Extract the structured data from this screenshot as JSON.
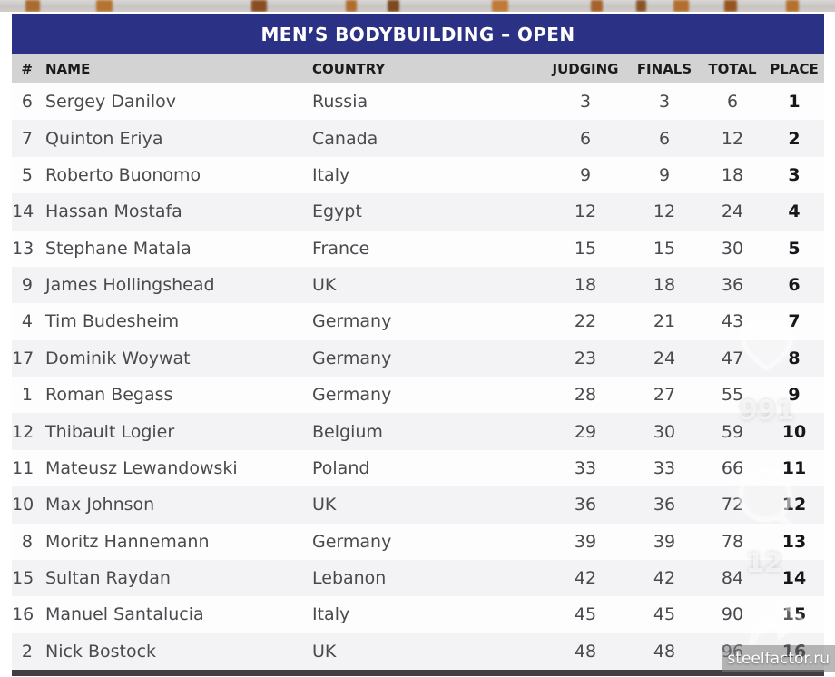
{
  "title": "MEN’S BODYBUILDING – OPEN",
  "table": {
    "columns": [
      "#",
      "NAME",
      "COUNTRY",
      "JUDGING",
      "FINALS",
      "TOTAL",
      "PLACE"
    ],
    "rows": [
      {
        "num": "6",
        "name": "Sergey Danilov",
        "country": "Russia",
        "judging": "3",
        "finals": "3",
        "total": "6",
        "place": "1"
      },
      {
        "num": "7",
        "name": "Quinton Eriya",
        "country": "Canada",
        "judging": "6",
        "finals": "6",
        "total": "12",
        "place": "2"
      },
      {
        "num": "5",
        "name": "Roberto Buonomo",
        "country": "Italy",
        "judging": "9",
        "finals": "9",
        "total": "18",
        "place": "3"
      },
      {
        "num": "14",
        "name": "Hassan Mostafa",
        "country": "Egypt",
        "judging": "12",
        "finals": "12",
        "total": "24",
        "place": "4"
      },
      {
        "num": "13",
        "name": "Stephane Matala",
        "country": "France",
        "judging": "15",
        "finals": "15",
        "total": "30",
        "place": "5"
      },
      {
        "num": "9",
        "name": "James Hollingshead",
        "country": "UK",
        "judging": "18",
        "finals": "18",
        "total": "36",
        "place": "6"
      },
      {
        "num": "4",
        "name": "Tim Budesheim",
        "country": "Germany",
        "judging": "22",
        "finals": "21",
        "total": "43",
        "place": "7"
      },
      {
        "num": "17",
        "name": "Dominik Woywat",
        "country": "Germany",
        "judging": "23",
        "finals": "24",
        "total": "47",
        "place": "8"
      },
      {
        "num": "1",
        "name": "Roman Begass",
        "country": "Germany",
        "judging": "28",
        "finals": "27",
        "total": "55",
        "place": "9"
      },
      {
        "num": "12",
        "name": "Thibault Logier",
        "country": "Belgium",
        "judging": "29",
        "finals": "30",
        "total": "59",
        "place": "10"
      },
      {
        "num": "11",
        "name": "Mateusz Lewandowski",
        "country": "Poland",
        "judging": "33",
        "finals": "33",
        "total": "66",
        "place": "11"
      },
      {
        "num": "10",
        "name": "Max Johnson",
        "country": "UK",
        "judging": "36",
        "finals": "36",
        "total": "72",
        "place": "12"
      },
      {
        "num": "8",
        "name": "Moritz Hannemann",
        "country": "Germany",
        "judging": "39",
        "finals": "39",
        "total": "78",
        "place": "13"
      },
      {
        "num": "15",
        "name": "Sultan Raydan",
        "country": "Lebanon",
        "judging": "42",
        "finals": "42",
        "total": "84",
        "place": "14"
      },
      {
        "num": "16",
        "name": "Manuel Santalucia",
        "country": "Italy",
        "judging": "45",
        "finals": "45",
        "total": "90",
        "place": "15"
      },
      {
        "num": "2",
        "name": "Nick Bostock",
        "country": "UK",
        "judging": "48",
        "finals": "48",
        "total": "96",
        "place": "16"
      }
    ]
  },
  "overlay": {
    "likes_count": "991",
    "comments_count": "12",
    "watermark": "steelfactor.ru"
  },
  "colors": {
    "banner": "#2b3184",
    "header_bg": "#d3d3d3",
    "row_alt": "#f3f3f5",
    "bottom_bar": "#3f3f43"
  }
}
